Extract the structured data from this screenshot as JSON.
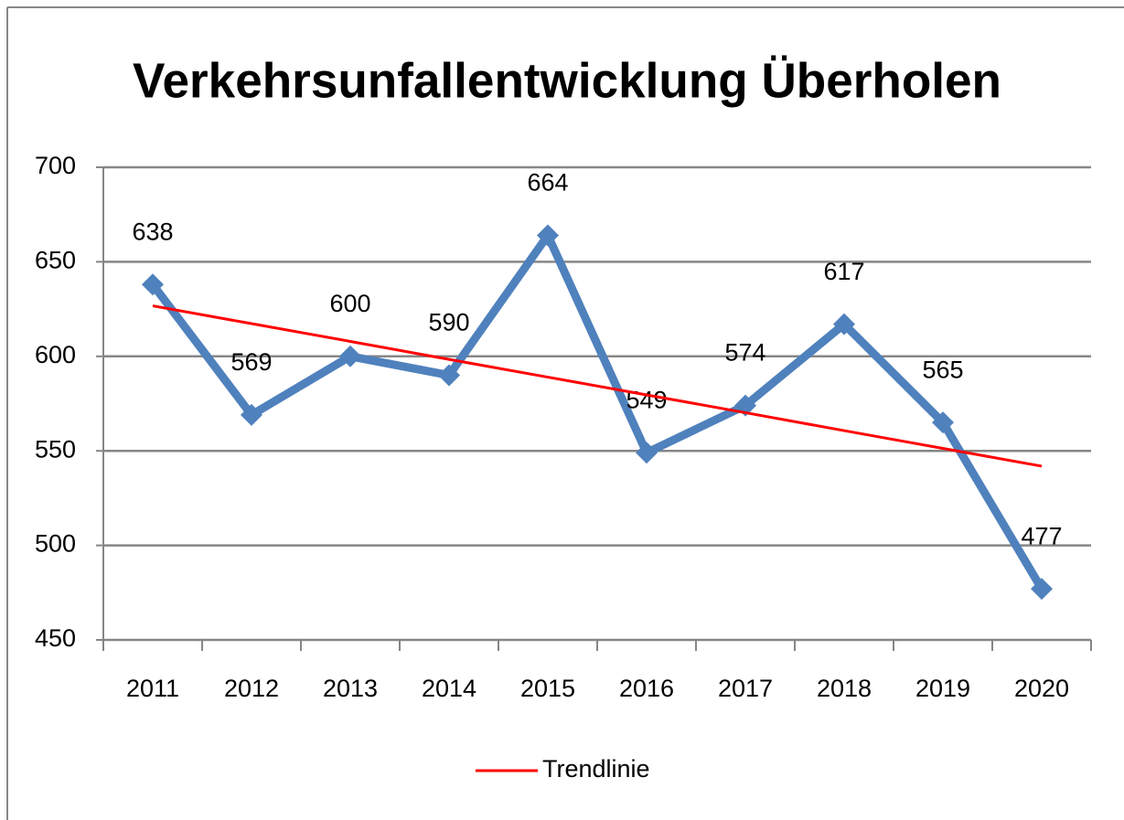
{
  "chart_data": {
    "type": "line",
    "title": "Verkehrsunfallentwicklung Überholen",
    "categories": [
      "2011",
      "2012",
      "2013",
      "2014",
      "2015",
      "2016",
      "2017",
      "2018",
      "2019",
      "2020"
    ],
    "series": [
      {
        "color": "#4f81bd",
        "data_labels": true,
        "marker": "diamond",
        "values": [
          638,
          569,
          600,
          590,
          664,
          549,
          574,
          617,
          565,
          477
        ]
      },
      {
        "name": "Trendlinie",
        "color": "#ff0000",
        "values": [
          626.7,
          617.3,
          607.9,
          598.4,
          589.0,
          579.6,
          570.2,
          560.7,
          551.3,
          541.9
        ]
      }
    ],
    "ylim": [
      450,
      700
    ],
    "yticks": [
      450,
      500,
      550,
      600,
      650,
      700
    ],
    "grid": true,
    "legend": "bottom"
  }
}
